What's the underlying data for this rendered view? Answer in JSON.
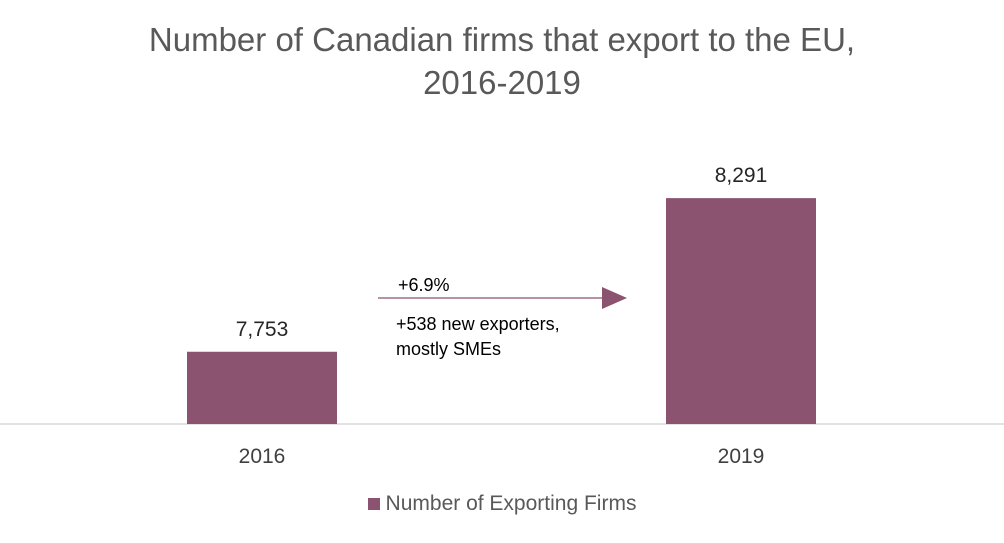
{
  "chart_data": {
    "type": "bar",
    "title_lines": [
      "Number of Canadian firms that export to the EU,",
      "2016-2019"
    ],
    "categories": [
      "2016",
      "2019"
    ],
    "series": [
      {
        "name": "Number of Exporting Firms",
        "values": [
          7753,
          8291
        ],
        "value_labels": [
          "7,753",
          "8,291"
        ]
      }
    ],
    "ylim": [
      7500,
      8400
    ],
    "grid": false,
    "legend_position": "bottom",
    "annotation": {
      "change_label": "+6.9%",
      "note_lines": [
        "+538 new exporters,",
        "mostly SMEs"
      ]
    },
    "colors": {
      "bar": "#8b536f",
      "axis": "#d9d9d9",
      "arrow": "#8b536f"
    }
  }
}
